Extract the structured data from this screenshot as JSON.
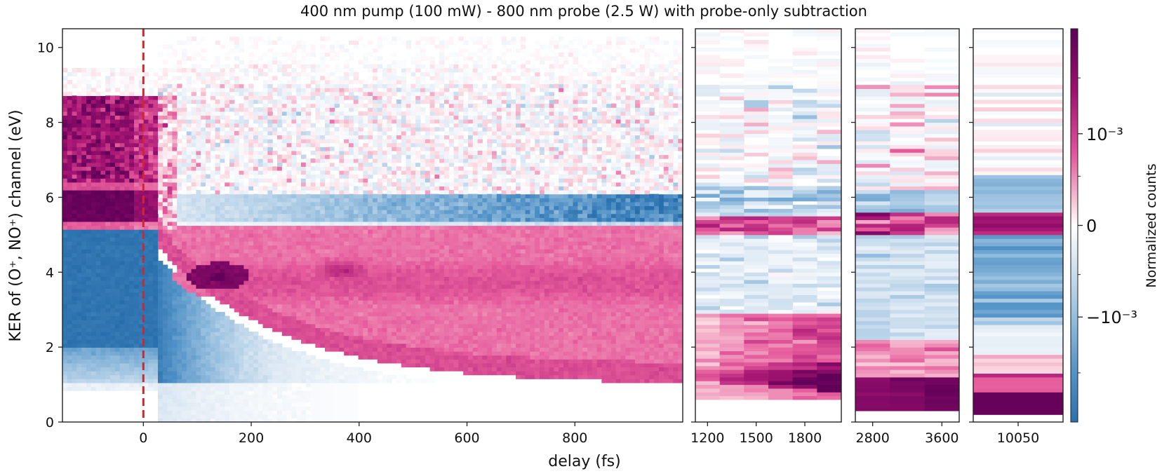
{
  "chart_data": {
    "type": "heatmap",
    "title": "400 nm pump (100 mW) - 800 nm probe (2.5 W) with probe-only subtraction",
    "xlabel": "delay (fs)",
    "ylabel": "KER of (O⁺, NO⁺) channel (eV)",
    "ylim": [
      0,
      10.5
    ],
    "yticks": [
      0,
      2,
      4,
      6,
      8,
      10
    ],
    "y_tick_labels": [
      "0",
      "2",
      "4",
      "6",
      "8",
      "10"
    ],
    "colorbar": {
      "label": "Normalized counts",
      "scale": "symlog",
      "range": [
        -0.002,
        0.002
      ],
      "ticks": [
        0.001,
        0,
        -0.001
      ],
      "tick_labels": [
        "10⁻³",
        "0",
        "−10⁻³"
      ],
      "colors": {
        "negative": "#2b76b0",
        "zero": "#ffffff",
        "positive": "#6a0060",
        "mid_positive": "#e0509a"
      }
    },
    "annotation": {
      "type": "vertical-dashed-line",
      "x": 0,
      "color": "#dd2222",
      "label": "t0"
    },
    "panels": [
      {
        "name": "main",
        "xlim": [
          -150,
          1000
        ],
        "xticks": [
          0,
          200,
          400,
          600,
          800
        ],
        "x_tick_labels": [
          "0",
          "200",
          "400",
          "600",
          "800"
        ],
        "delays_fs": [
          -150,
          1000
        ],
        "features": [
          {
            "region": "pre-t0 band",
            "ker_eV": [
              6.3,
              8.7
            ],
            "sign": "positive"
          },
          {
            "region": "pre-t0 band",
            "ker_eV": [
              5.4,
              6.2
            ],
            "sign": "strong positive"
          },
          {
            "region": "pre-t0 depletion",
            "ker_eV": [
              0.8,
              5.1
            ],
            "sign": "negative"
          },
          {
            "region": "dissociation feature",
            "center_fs": 140,
            "ker_eV": 3.9,
            "sign": "strong positive"
          },
          {
            "region": "decaying KER curve",
            "ker_eV_at_t0": 5.0,
            "ker_eV_at_1000fs": 0.9,
            "sign": "positive"
          },
          {
            "region": "depletion band",
            "ker_eV": [
              5.3,
              6.0
            ],
            "sign": "negative"
          }
        ]
      },
      {
        "name": "long-1",
        "delays_fs": [
          1200,
          1350,
          1500,
          1650,
          1800,
          1950
        ],
        "xticks": [
          1200,
          1500,
          1800
        ],
        "x_tick_labels": [
          "1200",
          "1500",
          "1800"
        ]
      },
      {
        "name": "long-2",
        "delays_fs": [
          2800,
          3200,
          3600
        ],
        "xticks": [
          2800,
          3600
        ],
        "x_tick_labels": [
          "2800",
          "3600"
        ]
      },
      {
        "name": "long-3",
        "delays_fs": [
          10050
        ],
        "xticks": [
          10050
        ],
        "x_tick_labels": [
          "10050"
        ]
      }
    ]
  }
}
